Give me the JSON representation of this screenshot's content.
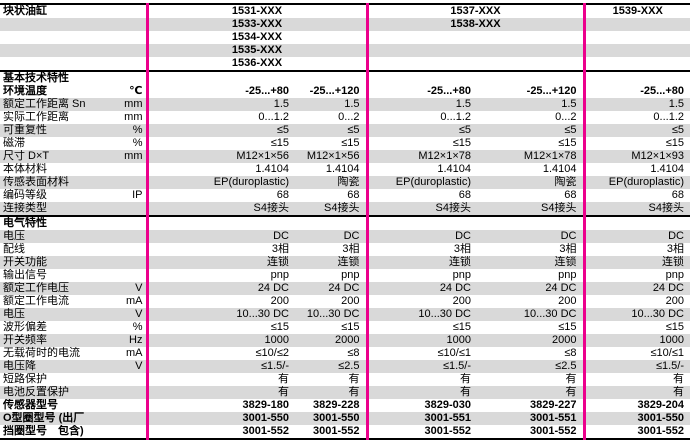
{
  "colors": {
    "accent": "#ec008c",
    "stripe": "#d9d9d9",
    "line": "#000000"
  },
  "header": {
    "title": "块状油缸",
    "groups": [
      {
        "models": [
          "1531-XXX",
          "1533-XXX",
          "1534-XXX",
          "1535-XXX",
          "1536-XXX"
        ]
      },
      {
        "models": [
          "1537-XXX",
          "1538-XXX"
        ]
      },
      {
        "models": [
          "1539-XXX"
        ]
      }
    ],
    "row_shading": [
      false,
      true,
      false,
      true,
      false
    ]
  },
  "rows": [
    {
      "type": "section",
      "label": "基本技术特性",
      "shaded": false,
      "topline": true
    },
    {
      "type": "data",
      "bold": true,
      "shaded": false,
      "label": "环境温度",
      "unit": "℃",
      "values": [
        "-25...+80",
        "-25...+120",
        "-25...+80",
        "-25...+120",
        "-25...+80"
      ]
    },
    {
      "type": "data",
      "bold": false,
      "shaded": true,
      "label": "额定工作距离 Sn",
      "unit": "mm",
      "values": [
        "1.5",
        "1.5",
        "1.5",
        "1.5",
        "1.5"
      ]
    },
    {
      "type": "data",
      "bold": false,
      "shaded": false,
      "label": "实际工作距离",
      "unit": "mm",
      "values": [
        "0...1.2",
        "0...2",
        "0...1.2",
        "0...2",
        "0...1.2"
      ]
    },
    {
      "type": "data",
      "bold": false,
      "shaded": true,
      "label": "可重复性",
      "unit": "%",
      "values": [
        "≤5",
        "≤5",
        "≤5",
        "≤5",
        "≤5"
      ]
    },
    {
      "type": "data",
      "bold": false,
      "shaded": false,
      "label": "磁滞",
      "unit": "%",
      "values": [
        "≤15",
        "≤15",
        "≤15",
        "≤15",
        "≤15"
      ]
    },
    {
      "type": "data",
      "bold": false,
      "shaded": true,
      "label": "尺寸 D×T",
      "unit": "mm",
      "values": [
        "M12×1×56",
        "M12×1×56",
        "M12×1×78",
        "M12×1×78",
        "M12×1×93"
      ]
    },
    {
      "type": "data",
      "bold": false,
      "shaded": false,
      "label": "本体材料",
      "unit": "",
      "values": [
        "1.4104",
        "1.4104",
        "1.4104",
        "1.4104",
        "1.4104"
      ]
    },
    {
      "type": "data",
      "bold": false,
      "shaded": true,
      "label": "传感表面材料",
      "unit": "",
      "values": [
        "EP(duroplastic)",
        "陶瓷",
        "EP(duroplastic)",
        "陶瓷",
        "EP(duroplastic)"
      ]
    },
    {
      "type": "data",
      "bold": false,
      "shaded": false,
      "label": "编码等级",
      "unit": "IP",
      "values": [
        "68",
        "68",
        "68",
        "68",
        "68"
      ]
    },
    {
      "type": "data",
      "bold": false,
      "shaded": true,
      "label": "连接类型",
      "unit": "",
      "values": [
        "S4接头",
        "S4接头",
        "S4接头",
        "S4接头",
        "S4接头"
      ]
    },
    {
      "type": "section",
      "label": "电气特性",
      "shaded": false,
      "topline": true
    },
    {
      "type": "data",
      "bold": false,
      "shaded": true,
      "label": "电压",
      "unit": "",
      "values": [
        "DC",
        "DC",
        "DC",
        "DC",
        "DC"
      ]
    },
    {
      "type": "data",
      "bold": false,
      "shaded": false,
      "label": "配线",
      "unit": "",
      "values": [
        "3相",
        "3相",
        "3相",
        "3相",
        "3相"
      ]
    },
    {
      "type": "data",
      "bold": false,
      "shaded": true,
      "label": "开关功能",
      "unit": "",
      "values": [
        "连锁",
        "连锁",
        "连锁",
        "连锁",
        "连锁"
      ]
    },
    {
      "type": "data",
      "bold": false,
      "shaded": false,
      "label": "输出信号",
      "unit": "",
      "values": [
        "pnp",
        "pnp",
        "pnp",
        "pnp",
        "pnp"
      ]
    },
    {
      "type": "data",
      "bold": false,
      "shaded": true,
      "label": "额定工作电压",
      "unit": "V",
      "values": [
        "24 DC",
        "24 DC",
        "24 DC",
        "24 DC",
        "24 DC"
      ]
    },
    {
      "type": "data",
      "bold": false,
      "shaded": false,
      "label": "额定工作电流",
      "unit": "mA",
      "values": [
        "200",
        "200",
        "200",
        "200",
        "200"
      ]
    },
    {
      "type": "data",
      "bold": false,
      "shaded": true,
      "label": "电压",
      "unit": "V",
      "values": [
        "10...30 DC",
        "10...30 DC",
        "10...30 DC",
        "10...30 DC",
        "10...30 DC"
      ]
    },
    {
      "type": "data",
      "bold": false,
      "shaded": false,
      "label": "波形偏差",
      "unit": "%",
      "values": [
        "≤15",
        "≤15",
        "≤15",
        "≤15",
        "≤15"
      ]
    },
    {
      "type": "data",
      "bold": false,
      "shaded": true,
      "label": "开关频率",
      "unit": "Hz",
      "values": [
        "1000",
        "2000",
        "1000",
        "2000",
        "1000"
      ]
    },
    {
      "type": "data",
      "bold": false,
      "shaded": false,
      "label": "无载荷时的电流",
      "unit": "mA",
      "values": [
        "≤10/≤2",
        "≤8",
        "≤10/≤1",
        "≤8",
        "≤10/≤1"
      ]
    },
    {
      "type": "data",
      "bold": false,
      "shaded": true,
      "label": "电压降",
      "unit": "V",
      "values": [
        "≤1.5/-",
        "≤2.5",
        "≤1.5/-",
        "≤2.5",
        "≤1.5/-"
      ]
    },
    {
      "type": "data",
      "bold": false,
      "shaded": false,
      "label": "短路保护",
      "unit": "",
      "values": [
        "有",
        "有",
        "有",
        "有",
        "有"
      ]
    },
    {
      "type": "data",
      "bold": false,
      "shaded": true,
      "label": "电池反置保护",
      "unit": "",
      "values": [
        "有",
        "有",
        "有",
        "有",
        "有"
      ]
    },
    {
      "type": "data",
      "bold": true,
      "shaded": false,
      "label": "传感器型号",
      "unit": "",
      "values": [
        "3829-180",
        "3829-228",
        "3829-030",
        "3829-227",
        "3829-204"
      ]
    },
    {
      "type": "data",
      "bold": true,
      "shaded": true,
      "label": "O型圈型号 (出厂",
      "unit": "",
      "values": [
        "3001-550",
        "3001-550",
        "3001-551",
        "3001-551",
        "3001-550"
      ]
    },
    {
      "type": "data",
      "bold": true,
      "shaded": false,
      "label": "挡圈型号　包含)",
      "unit": "",
      "values": [
        "3001-552",
        "3001-552",
        "3001-552",
        "3001-552",
        "3001-552"
      ]
    }
  ]
}
